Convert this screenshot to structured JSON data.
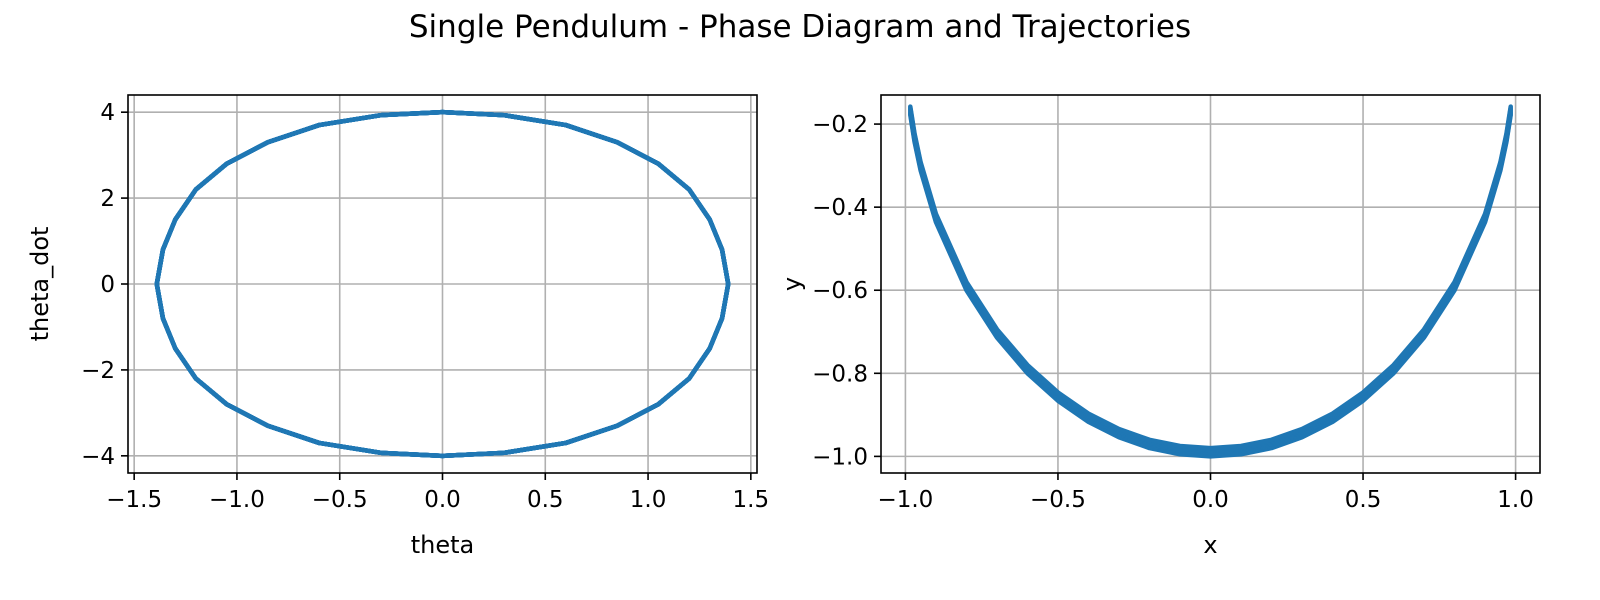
{
  "figure": {
    "title": "Single Pendulum - Phase Diagram and Trajectories",
    "line_color": "#1f77b4",
    "grid_color": "#b0b0b0"
  },
  "chart_data": [
    {
      "type": "line",
      "description": "phase portrait: closed orbit traced over many periods (theta amplitude ~1.39 rad, peak theta_dot ~4.0)",
      "xlabel": "theta",
      "ylabel": "theta_dot",
      "xlim": [
        -1.53,
        1.53
      ],
      "ylim": [
        -4.4,
        4.4
      ],
      "xticks": [
        -1.5,
        -1.0,
        -0.5,
        0.0,
        0.5,
        1.0,
        1.5
      ],
      "xtick_labels": [
        "−1.5",
        "−1.0",
        "−0.5",
        "0.0",
        "0.5",
        "1.0",
        "1.5"
      ],
      "yticks": [
        -4,
        -2,
        0,
        2,
        4
      ],
      "ytick_labels": [
        "−4",
        "−2",
        "0",
        "2",
        "4"
      ],
      "grid": true,
      "x": [
        -1.39,
        -1.36,
        -1.3,
        -1.2,
        -1.05,
        -0.85,
        -0.6,
        -0.3,
        0.0,
        0.3,
        0.6,
        0.85,
        1.05,
        1.2,
        1.3,
        1.36,
        1.39,
        1.36,
        1.3,
        1.2,
        1.05,
        0.85,
        0.6,
        0.3,
        0.0,
        -0.3,
        -0.6,
        -0.85,
        -1.05,
        -1.2,
        -1.3,
        -1.36,
        -1.39
      ],
      "y": [
        0.0,
        0.8,
        1.5,
        2.2,
        2.8,
        3.3,
        3.7,
        3.93,
        4.0,
        3.93,
        3.7,
        3.3,
        2.8,
        2.2,
        1.5,
        0.8,
        0.0,
        -0.8,
        -1.5,
        -2.2,
        -2.8,
        -3.3,
        -3.7,
        -3.93,
        -4.0,
        -3.93,
        -3.7,
        -3.3,
        -2.8,
        -2.2,
        -1.5,
        -0.8,
        0.0
      ],
      "band_width": [
        0.0,
        0.0
      ]
    },
    {
      "type": "line",
      "description": "bob trajectory (x, y) swinging between x = -0.98 and x = 0.98; trace band thickens near the bottom (y from -1.0 to about -0.98)",
      "xlabel": "x",
      "ylabel": "y",
      "xlim": [
        -1.08,
        1.08
      ],
      "ylim": [
        -1.04,
        -0.13
      ],
      "xticks": [
        -1.0,
        -0.5,
        0.0,
        0.5,
        1.0
      ],
      "xtick_labels": [
        "−1.0",
        "−0.5",
        "0.0",
        "0.5",
        "1.0"
      ],
      "yticks": [
        -1.0,
        -0.8,
        -0.6,
        -0.4,
        -0.2
      ],
      "ytick_labels": [
        "−1.0",
        "−0.8",
        "−0.6",
        "−0.4",
        "−0.2"
      ],
      "grid": true,
      "x": [
        -0.984,
        -0.97,
        -0.95,
        -0.9,
        -0.8,
        -0.7,
        -0.6,
        -0.5,
        -0.4,
        -0.3,
        -0.2,
        -0.1,
        0.0,
        0.1,
        0.2,
        0.3,
        0.4,
        0.5,
        0.6,
        0.7,
        0.8,
        0.9,
        0.95,
        0.97,
        0.984
      ],
      "y": [
        -0.178,
        -0.243,
        -0.312,
        -0.436,
        -0.6,
        -0.714,
        -0.8,
        -0.866,
        -0.917,
        -0.954,
        -0.98,
        -0.995,
        -1.0,
        -0.995,
        -0.98,
        -0.954,
        -0.917,
        -0.866,
        -0.8,
        -0.714,
        -0.6,
        -0.436,
        -0.312,
        -0.243,
        -0.178
      ],
      "band_width": [
        0.0,
        0.02
      ]
    }
  ]
}
